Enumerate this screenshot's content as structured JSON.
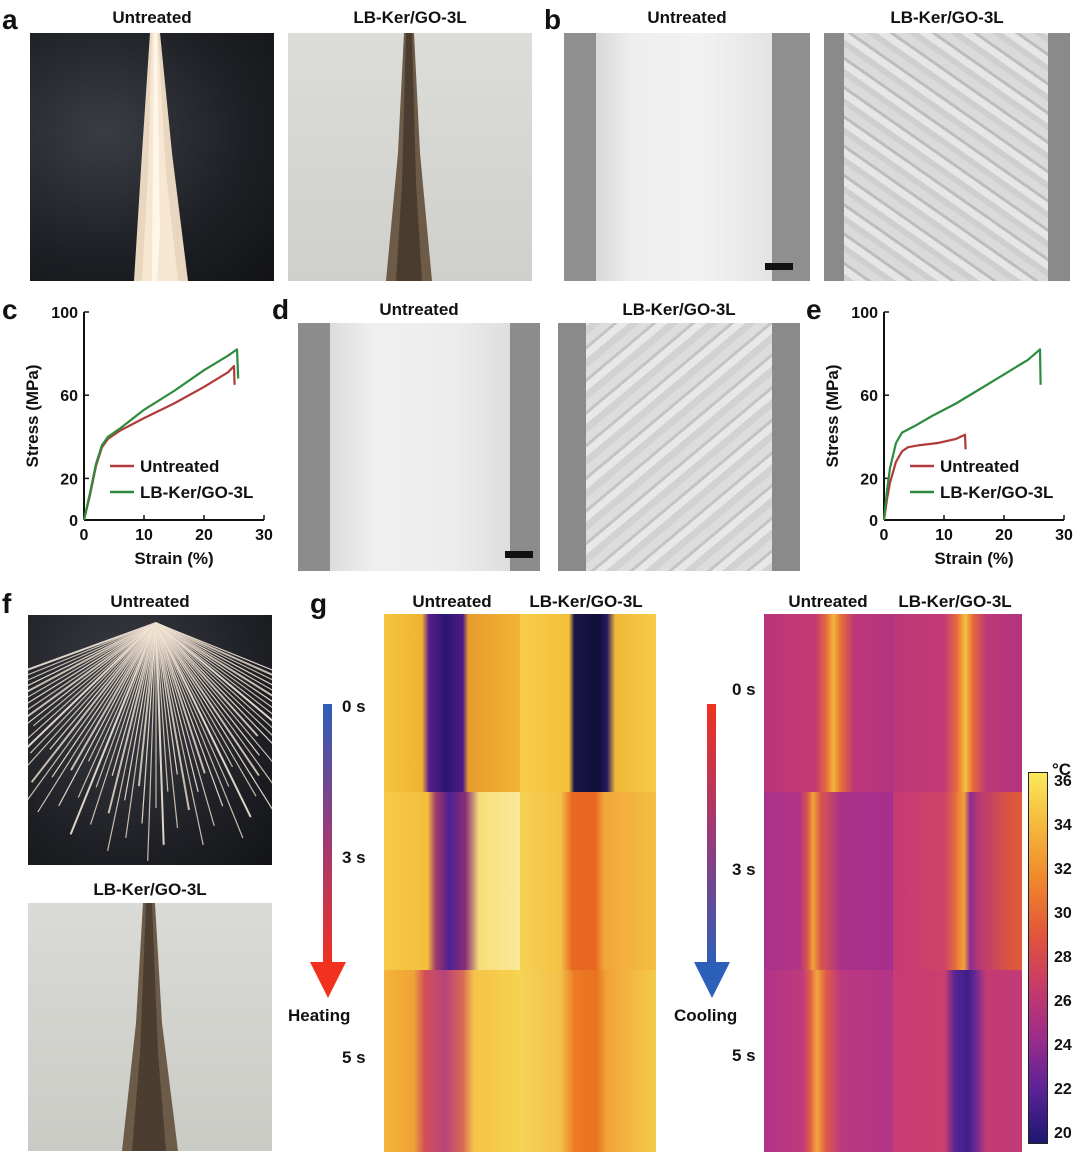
{
  "panels": {
    "a": {
      "letter": "a",
      "left_caption": "Untreated",
      "right_caption": "LB-Ker/GO-3L"
    },
    "b": {
      "letter": "b",
      "left_caption": "Untreated",
      "right_caption": "LB-Ker/GO-3L"
    },
    "c": {
      "letter": "c"
    },
    "d": {
      "letter": "d",
      "left_caption": "Untreated",
      "right_caption": "LB-Ker/GO-3L"
    },
    "e": {
      "letter": "e"
    },
    "f": {
      "letter": "f",
      "top_caption": "Untreated",
      "bottom_caption": "LB-Ker/GO-3L"
    },
    "g": {
      "letter": "g",
      "heating": {
        "col1": "Untreated",
        "col2": "LB-Ker/GO-3L",
        "times": [
          "0 s",
          "3 s",
          "5 s"
        ],
        "arrow_label": "Heating"
      },
      "cooling": {
        "col1": "Untreated",
        "col2": "LB-Ker/GO-3L",
        "times": [
          "0 s",
          "3 s",
          "5 s"
        ],
        "arrow_label": "Cooling"
      },
      "colorbar": {
        "unit": "°C",
        "ticks": [
          "36",
          "34",
          "32",
          "30",
          "28",
          "26",
          "24",
          "22",
          "20"
        ]
      }
    }
  },
  "chart_data": [
    {
      "type": "line",
      "panel": "c",
      "xlabel": "Strain (%)",
      "ylabel": "Stress (MPa)",
      "xlim": [
        0,
        30
      ],
      "ylim": [
        0,
        100
      ],
      "xticks": [
        "0",
        "10",
        "20",
        "30"
      ],
      "yticks": [
        "0",
        "20",
        "60",
        "100"
      ],
      "legend": "bottom-right",
      "series": [
        {
          "name": "Untreated",
          "color": "#b03a3a",
          "x": [
            0,
            1,
            2,
            3,
            4,
            6,
            10,
            15,
            20,
            24,
            25,
            25.1
          ],
          "y": [
            0,
            12,
            26,
            35,
            39,
            43,
            49,
            56,
            64,
            71,
            74,
            65
          ]
        },
        {
          "name": "LB-Ker/GO-3L",
          "color": "#2e8b3e",
          "x": [
            0,
            1,
            2,
            3,
            4,
            6,
            10,
            15,
            20,
            24,
            25.5,
            25.7
          ],
          "y": [
            0,
            13,
            27,
            36,
            40,
            44,
            53,
            62,
            72,
            79,
            82,
            68
          ]
        }
      ]
    },
    {
      "type": "line",
      "panel": "e",
      "xlabel": "Strain (%)",
      "ylabel": "Stress (MPa)",
      "xlim": [
        0,
        30
      ],
      "ylim": [
        0,
        100
      ],
      "xticks": [
        "0",
        "10",
        "20",
        "30"
      ],
      "yticks": [
        "0",
        "20",
        "60",
        "100"
      ],
      "legend": "bottom-right",
      "series": [
        {
          "name": "Untreated",
          "color": "#b03a3a",
          "x": [
            0,
            0.5,
            1,
            2,
            3,
            4,
            6,
            9,
            12,
            13.5,
            13.6
          ],
          "y": [
            0,
            10,
            18,
            28,
            33,
            35,
            36,
            37,
            39,
            41,
            34
          ]
        },
        {
          "name": "LB-Ker/GO-3L",
          "color": "#2e8b3e",
          "x": [
            0,
            0.5,
            1,
            2,
            3,
            5,
            8,
            12,
            16,
            20,
            24,
            26,
            26.1
          ],
          "y": [
            0,
            14,
            25,
            37,
            42,
            45,
            50,
            56,
            63,
            70,
            77,
            82,
            65
          ]
        }
      ]
    }
  ]
}
